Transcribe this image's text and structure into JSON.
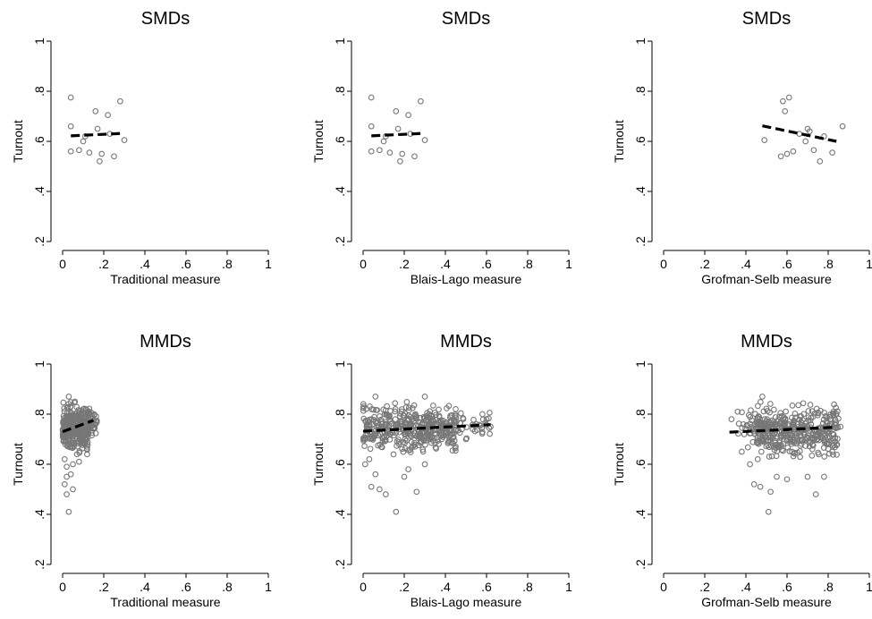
{
  "chart_data": [
    {
      "type": "scatter",
      "title": "SMDs",
      "xlabel": "Traditional measure",
      "ylabel": "Turnout",
      "xlim": [
        0,
        1
      ],
      "ylim": [
        0.2,
        1
      ],
      "xticks": [
        "0",
        ".2",
        ".4",
        ".6",
        ".8",
        "1"
      ],
      "yticks": [
        ".2",
        ".4",
        ".6",
        ".8",
        "1"
      ],
      "points": [
        [
          0.04,
          0.775
        ],
        [
          0.04,
          0.66
        ],
        [
          0.04,
          0.56
        ],
        [
          0.08,
          0.565
        ],
        [
          0.1,
          0.6
        ],
        [
          0.11,
          0.62
        ],
        [
          0.13,
          0.555
        ],
        [
          0.16,
          0.72
        ],
        [
          0.17,
          0.65
        ],
        [
          0.18,
          0.52
        ],
        [
          0.19,
          0.55
        ],
        [
          0.22,
          0.705
        ],
        [
          0.23,
          0.63
        ],
        [
          0.25,
          0.54
        ],
        [
          0.28,
          0.76
        ],
        [
          0.3,
          0.605
        ]
      ],
      "fit": {
        "x": [
          0.04,
          0.3
        ],
        "y": [
          0.622,
          0.632
        ]
      }
    },
    {
      "type": "scatter",
      "title": "SMDs",
      "xlabel": "Blais-Lago measure",
      "ylabel": "Turnout",
      "xlim": [
        0,
        1
      ],
      "ylim": [
        0.2,
        1
      ],
      "xticks": [
        "0",
        ".2",
        ".4",
        ".6",
        ".8",
        "1"
      ],
      "yticks": [
        ".2",
        ".4",
        ".6",
        ".8",
        "1"
      ],
      "points": [
        [
          0.04,
          0.775
        ],
        [
          0.04,
          0.66
        ],
        [
          0.04,
          0.56
        ],
        [
          0.08,
          0.565
        ],
        [
          0.1,
          0.6
        ],
        [
          0.11,
          0.62
        ],
        [
          0.13,
          0.555
        ],
        [
          0.16,
          0.72
        ],
        [
          0.17,
          0.65
        ],
        [
          0.18,
          0.52
        ],
        [
          0.19,
          0.55
        ],
        [
          0.22,
          0.705
        ],
        [
          0.23,
          0.63
        ],
        [
          0.25,
          0.54
        ],
        [
          0.28,
          0.76
        ],
        [
          0.3,
          0.605
        ]
      ],
      "fit": {
        "x": [
          0.04,
          0.3
        ],
        "y": [
          0.622,
          0.632
        ]
      }
    },
    {
      "type": "scatter",
      "title": "SMDs",
      "xlabel": "Grofman-Selb measure",
      "ylabel": "Turnout",
      "xlim": [
        0,
        1
      ],
      "ylim": [
        0.2,
        1
      ],
      "xticks": [
        "0",
        ".2",
        ".4",
        ".6",
        ".8",
        "1"
      ],
      "yticks": [
        ".2",
        ".4",
        ".6",
        ".8",
        "1"
      ],
      "points": [
        [
          0.49,
          0.605
        ],
        [
          0.57,
          0.54
        ],
        [
          0.58,
          0.76
        ],
        [
          0.59,
          0.72
        ],
        [
          0.6,
          0.55
        ],
        [
          0.61,
          0.775
        ],
        [
          0.63,
          0.56
        ],
        [
          0.66,
          0.63
        ],
        [
          0.69,
          0.6
        ],
        [
          0.7,
          0.65
        ],
        [
          0.71,
          0.64
        ],
        [
          0.73,
          0.565
        ],
        [
          0.76,
          0.52
        ],
        [
          0.78,
          0.62
        ],
        [
          0.82,
          0.555
        ],
        [
          0.87,
          0.66
        ]
      ],
      "fit": {
        "x": [
          0.48,
          0.84
        ],
        "y": [
          0.662,
          0.6
        ]
      }
    },
    {
      "type": "scatter",
      "title": "MMDs",
      "xlabel": "Traditional measure",
      "ylabel": "Turnout",
      "xlim": [
        0,
        1
      ],
      "ylim": [
        0.2,
        1
      ],
      "xticks": [
        "0",
        ".2",
        ".4",
        ".6",
        ".8",
        "1"
      ],
      "yticks": [
        ".2",
        ".4",
        ".6",
        ".8",
        "1"
      ],
      "points": [
        [
          0.02,
          0.48
        ],
        [
          0.03,
          0.41
        ],
        [
          0.01,
          0.52
        ],
        [
          0.02,
          0.55
        ],
        [
          0.05,
          0.5
        ],
        [
          0.04,
          0.56
        ],
        [
          0.08,
          0.61
        ],
        [
          0.05,
          0.6
        ],
        [
          0.02,
          0.59
        ],
        [
          0.12,
          0.67
        ],
        [
          0.14,
          0.75
        ],
        [
          0.16,
          0.76
        ],
        [
          0.13,
          0.8
        ],
        [
          0.1,
          0.82
        ],
        [
          0.03,
          0.87
        ],
        [
          0.06,
          0.85
        ],
        [
          0.01,
          0.62
        ],
        [
          0.07,
          0.64
        ]
      ],
      "cloud": [
        {
          "x": [
            0.0,
            0.13
          ],
          "y": [
            0.62,
            0.87
          ],
          "n": 320
        },
        {
          "x": [
            0.08,
            0.17
          ],
          "y": [
            0.7,
            0.82
          ],
          "n": 50
        }
      ],
      "fit": {
        "x": [
          0.0,
          0.15
        ],
        "y": [
          0.73,
          0.775
        ]
      }
    },
    {
      "type": "scatter",
      "title": "MMDs",
      "xlabel": "Blais-Lago measure",
      "ylabel": "Turnout",
      "xlim": [
        0,
        1
      ],
      "ylim": [
        0.2,
        1
      ],
      "xticks": [
        "0",
        ".2",
        ".4",
        ".6",
        ".8",
        "1"
      ],
      "yticks": [
        ".2",
        ".4",
        ".6",
        ".8",
        "1"
      ],
      "points": [
        [
          0.16,
          0.41
        ],
        [
          0.04,
          0.51
        ],
        [
          0.08,
          0.5
        ],
        [
          0.11,
          0.48
        ],
        [
          0.26,
          0.49
        ],
        [
          0.06,
          0.56
        ],
        [
          0.2,
          0.55
        ],
        [
          0.3,
          0.6
        ],
        [
          0.45,
          0.67
        ],
        [
          0.5,
          0.7
        ],
        [
          0.55,
          0.76
        ],
        [
          0.6,
          0.78
        ],
        [
          0.62,
          0.75
        ],
        [
          0.58,
          0.8
        ],
        [
          0.45,
          0.82
        ],
        [
          0.3,
          0.87
        ],
        [
          0.06,
          0.87
        ],
        [
          0.01,
          0.6
        ],
        [
          0.03,
          0.62
        ],
        [
          0.22,
          0.58
        ]
      ],
      "cloud": [
        {
          "x": [
            0.0,
            0.45
          ],
          "y": [
            0.62,
            0.87
          ],
          "n": 380
        },
        {
          "x": [
            0.3,
            0.62
          ],
          "y": [
            0.68,
            0.82
          ],
          "n": 60
        }
      ],
      "fit": {
        "x": [
          0.0,
          0.62
        ],
        "y": [
          0.732,
          0.758
        ]
      }
    },
    {
      "type": "scatter",
      "title": "MMDs",
      "xlabel": "Grofman-Selb measure",
      "ylabel": "Turnout",
      "xlim": [
        0,
        1
      ],
      "ylim": [
        0.2,
        1
      ],
      "xticks": [
        "0",
        ".2",
        ".4",
        ".6",
        ".8",
        "1"
      ],
      "yticks": [
        ".2",
        ".4",
        ".6",
        ".8",
        "1"
      ],
      "points": [
        [
          0.51,
          0.41
        ],
        [
          0.44,
          0.52
        ],
        [
          0.47,
          0.51
        ],
        [
          0.52,
          0.49
        ],
        [
          0.74,
          0.48
        ],
        [
          0.33,
          0.78
        ],
        [
          0.36,
          0.81
        ],
        [
          0.42,
          0.6
        ],
        [
          0.38,
          0.65
        ],
        [
          0.84,
          0.8
        ],
        [
          0.82,
          0.65
        ],
        [
          0.78,
          0.55
        ],
        [
          0.7,
          0.55
        ],
        [
          0.6,
          0.54
        ],
        [
          0.48,
          0.87
        ],
        [
          0.55,
          0.55
        ],
        [
          0.86,
          0.75
        ]
      ],
      "cloud": [
        {
          "x": [
            0.45,
            0.85
          ],
          "y": [
            0.6,
            0.87
          ],
          "n": 380
        },
        {
          "x": [
            0.36,
            0.5
          ],
          "y": [
            0.66,
            0.84
          ],
          "n": 50
        }
      ],
      "fit": {
        "x": [
          0.32,
          0.84
        ],
        "y": [
          0.728,
          0.748
        ]
      }
    }
  ]
}
